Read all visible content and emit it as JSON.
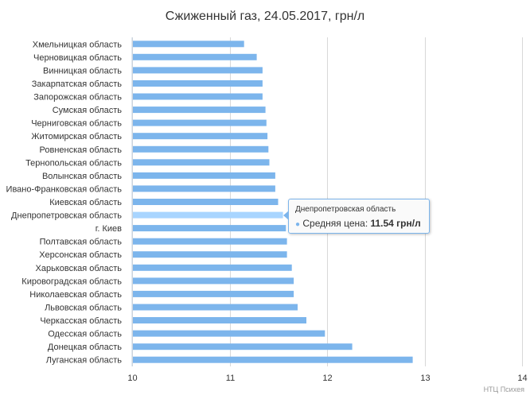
{
  "chart_data": {
    "type": "bar",
    "orientation": "horizontal",
    "title": "Сжиженный газ, 24.05.2017, грн/л",
    "xlim": [
      10,
      14
    ],
    "ticks": [
      "10",
      "11",
      "12",
      "13",
      "14"
    ],
    "grid": true,
    "categories": [
      "Хмельницкая область",
      "Черновицкая область",
      "Винницкая область",
      "Закарпатская область",
      "Запорожская область",
      "Сумская область",
      "Черниговская область",
      "Житомирская область",
      "Ровненская область",
      "Тернопольская область",
      "Волынская область",
      "Ивано-Франковская область",
      "Киевская область",
      "Днепропетровская область",
      "г. Киев",
      "Полтавская область",
      "Херсонская область",
      "Харьковская область",
      "Кировоградская область",
      "Николаевская область",
      "Львовская область",
      "Черкасская область",
      "Одесская область",
      "Донецкая область",
      "Луганская область"
    ],
    "series": [
      {
        "values": [
          11.14,
          11.27,
          11.33,
          11.33,
          11.33,
          11.36,
          11.37,
          11.38,
          11.39,
          11.4,
          11.46,
          11.46,
          11.49,
          11.54,
          11.57,
          11.58,
          11.58,
          11.63,
          11.65,
          11.65,
          11.69,
          11.78,
          11.97,
          12.25,
          12.87
        ]
      }
    ],
    "highlight_index": 13,
    "bar_color": "#7cb5ec",
    "highlight_color": "#a8d5ff"
  },
  "tooltip": {
    "header": "Днепропетровская область",
    "label": "Средняя цена: ",
    "value": "11.54 грн/л"
  },
  "credit": "НТЦ Психея"
}
